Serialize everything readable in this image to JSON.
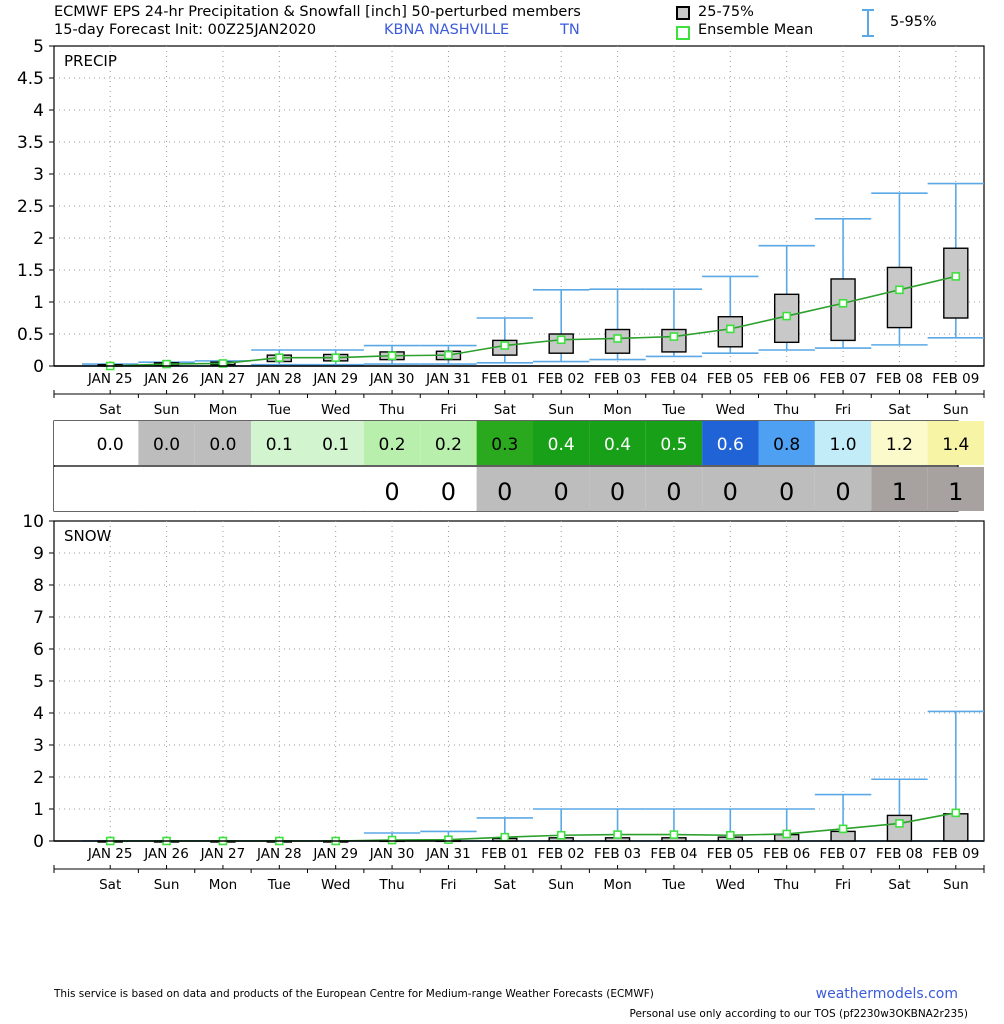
{
  "header": {
    "title": "ECMWF EPS 24-hr Precipitation & Snowfall [inch]  50-perturbed members",
    "subtitle": "15-day Forecast Init: 00Z25JAN2020",
    "station": "KBNA  NASHVILLE",
    "state": "TN"
  },
  "legend": {
    "box_label": "25-75%",
    "mean_label": "Ensemble Mean",
    "whisker_label": "5-95%"
  },
  "colors": {
    "whisker": "#5aa9e6",
    "mean_line": "#2ca02c",
    "mean_marker": "#3ee03e",
    "box_fill": "#c8c8c8",
    "station_text": "#3b5bdb"
  },
  "chart_data": [
    {
      "type": "box",
      "label": "PRECIP",
      "ylim": [
        0,
        5
      ],
      "yticks": [
        "0",
        "0.5",
        "1",
        "1.5",
        "2",
        "2.5",
        "3",
        "3.5",
        "4",
        "4.5",
        "5"
      ],
      "categories": [
        "JAN 25",
        "JAN 26",
        "JAN 27",
        "JAN 28",
        "JAN 29",
        "JAN 30",
        "JAN 31",
        "FEB 01",
        "FEB 02",
        "FEB 03",
        "FEB 04",
        "FEB 05",
        "FEB 06",
        "FEB 07",
        "FEB 08",
        "FEB 09"
      ],
      "weekdays": [
        "Sat",
        "Sun",
        "Mon",
        "Tue",
        "Wed",
        "Thu",
        "Fri",
        "Sat",
        "Sun",
        "Mon",
        "Tue",
        "Wed",
        "Thu",
        "Fri",
        "Sat",
        "Sun"
      ],
      "p5": [
        0,
        0,
        0,
        0.02,
        0.02,
        0.03,
        0.03,
        0.05,
        0.07,
        0.1,
        0.15,
        0.2,
        0.25,
        0.28,
        0.33,
        0.44
      ],
      "p25": [
        0,
        0.01,
        0.02,
        0.07,
        0.08,
        0.1,
        0.1,
        0.17,
        0.2,
        0.2,
        0.22,
        0.3,
        0.37,
        0.4,
        0.6,
        0.75
      ],
      "p75": [
        0.02,
        0.05,
        0.06,
        0.17,
        0.18,
        0.22,
        0.23,
        0.4,
        0.5,
        0.57,
        0.57,
        0.77,
        1.12,
        1.36,
        1.54,
        1.84
      ],
      "p95": [
        0.03,
        0.06,
        0.08,
        0.25,
        0.25,
        0.32,
        0.32,
        0.75,
        1.19,
        1.2,
        1.2,
        1.4,
        1.88,
        2.3,
        2.7,
        2.85
      ],
      "mean": [
        0.0,
        0.03,
        0.04,
        0.13,
        0.13,
        0.16,
        0.17,
        0.32,
        0.41,
        0.43,
        0.46,
        0.58,
        0.78,
        0.98,
        1.19,
        1.4
      ]
    },
    {
      "type": "box",
      "label": "SNOW",
      "ylim": [
        0,
        10
      ],
      "yticks": [
        "0",
        "1",
        "2",
        "3",
        "4",
        "5",
        "6",
        "7",
        "8",
        "9",
        "10"
      ],
      "categories": [
        "JAN 25",
        "JAN 26",
        "JAN 27",
        "JAN 28",
        "JAN 29",
        "JAN 30",
        "JAN 31",
        "FEB 01",
        "FEB 02",
        "FEB 03",
        "FEB 04",
        "FEB 05",
        "FEB 06",
        "FEB 07",
        "FEB 08",
        "FEB 09"
      ],
      "weekdays": [
        "Sat",
        "Sun",
        "Mon",
        "Tue",
        "Wed",
        "Thu",
        "Fri",
        "Sat",
        "Sun",
        "Mon",
        "Tue",
        "Wed",
        "Thu",
        "Fri",
        "Sat",
        "Sun"
      ],
      "p5": [
        0,
        0,
        0,
        0,
        0,
        0,
        0,
        0,
        0,
        0,
        0,
        0,
        0,
        0,
        0,
        0
      ],
      "p25": [
        0,
        0,
        0,
        0,
        0,
        0,
        0,
        0,
        0,
        0,
        0,
        0,
        0,
        0,
        0,
        0
      ],
      "p75": [
        0,
        0,
        0,
        0,
        0,
        0.02,
        0.02,
        0.08,
        0.1,
        0.1,
        0.1,
        0.12,
        0.2,
        0.3,
        0.8,
        0.85
      ],
      "p95": [
        0,
        0,
        0,
        0,
        0,
        0.25,
        0.3,
        0.72,
        1.0,
        1.0,
        1.0,
        1.0,
        1.0,
        1.45,
        1.93,
        4.05
      ],
      "mean": [
        0,
        0,
        0,
        0,
        0,
        0.03,
        0.04,
        0.12,
        0.18,
        0.2,
        0.2,
        0.18,
        0.22,
        0.38,
        0.55,
        0.88
      ]
    }
  ],
  "precip_table": {
    "values": [
      "0.0",
      "0.0",
      "0.0",
      "0.1",
      "0.1",
      "0.2",
      "0.2",
      "0.3",
      "0.4",
      "0.4",
      "0.5",
      "0.6",
      "0.8",
      "1.0",
      "1.2",
      "1.4"
    ],
    "bg": [
      "#ffffff",
      "#bdbdbd",
      "#bdbdbd",
      "#d2f5cf",
      "#d2f5cf",
      "#b9efad",
      "#b9efad",
      "#2aa81e",
      "#18a018",
      "#18a018",
      "#18a018",
      "#1f63d6",
      "#4ea1f2",
      "#c3ecf9",
      "#fbfacb",
      "#f7f4a6"
    ],
    "fg": [
      "#000",
      "#000",
      "#000",
      "#000",
      "#000",
      "#000",
      "#000",
      "#000",
      "#fff",
      "#fff",
      "#fff",
      "#fff",
      "#000",
      "#000",
      "#000",
      "#000"
    ]
  },
  "snow_table": {
    "values": [
      "",
      "",
      "",
      "",
      "",
      "0",
      "0",
      "0",
      "0",
      "0",
      "0",
      "0",
      "0",
      "0",
      "1",
      "1"
    ],
    "bg": [
      "#ffffff",
      "#ffffff",
      "#ffffff",
      "#ffffff",
      "#ffffff",
      "#ffffff",
      "#ffffff",
      "#bdbdbd",
      "#bdbdbd",
      "#bdbdbd",
      "#bdbdbd",
      "#bdbdbd",
      "#bdbdbd",
      "#bdbdbd",
      "#a7a29f",
      "#a7a29f"
    ]
  },
  "footer": {
    "disclaimer": "This service is based on data and products of the European Centre for Medium-range Weather Forecasts (ECMWF)",
    "brand": "weathermodels.com",
    "tos": "Personal use only according to our TOS (pf2230w3OKBNA2r235)"
  }
}
